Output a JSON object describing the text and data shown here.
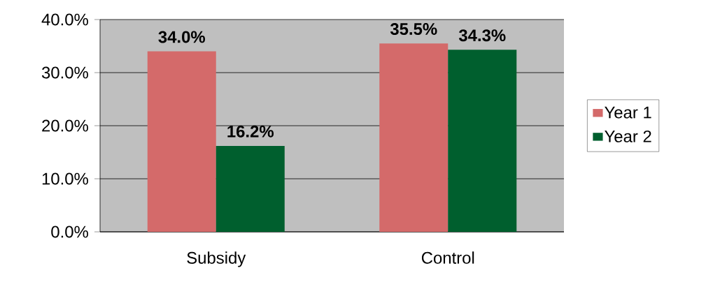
{
  "chart_data": {
    "type": "bar",
    "categories": [
      "Subsidy",
      "Control"
    ],
    "series": [
      {
        "name": "Year 1",
        "color": "#d46a6a",
        "values": [
          34.0,
          35.5
        ],
        "value_labels": [
          "34.0%",
          "35.5%"
        ]
      },
      {
        "name": "Year 2",
        "color": "#005f2e",
        "values": [
          16.2,
          34.3
        ],
        "value_labels": [
          "16.2%",
          "34.3%"
        ]
      }
    ],
    "ylim": [
      0,
      40
    ],
    "yticks": [
      {
        "value": 0,
        "label": "0.0%"
      },
      {
        "value": 10,
        "label": "10.0%"
      },
      {
        "value": 20,
        "label": "20.0%"
      },
      {
        "value": 30,
        "label": "30.0%"
      },
      {
        "value": 40,
        "label": "40.0%"
      }
    ],
    "grid": "y",
    "legend": "right"
  }
}
